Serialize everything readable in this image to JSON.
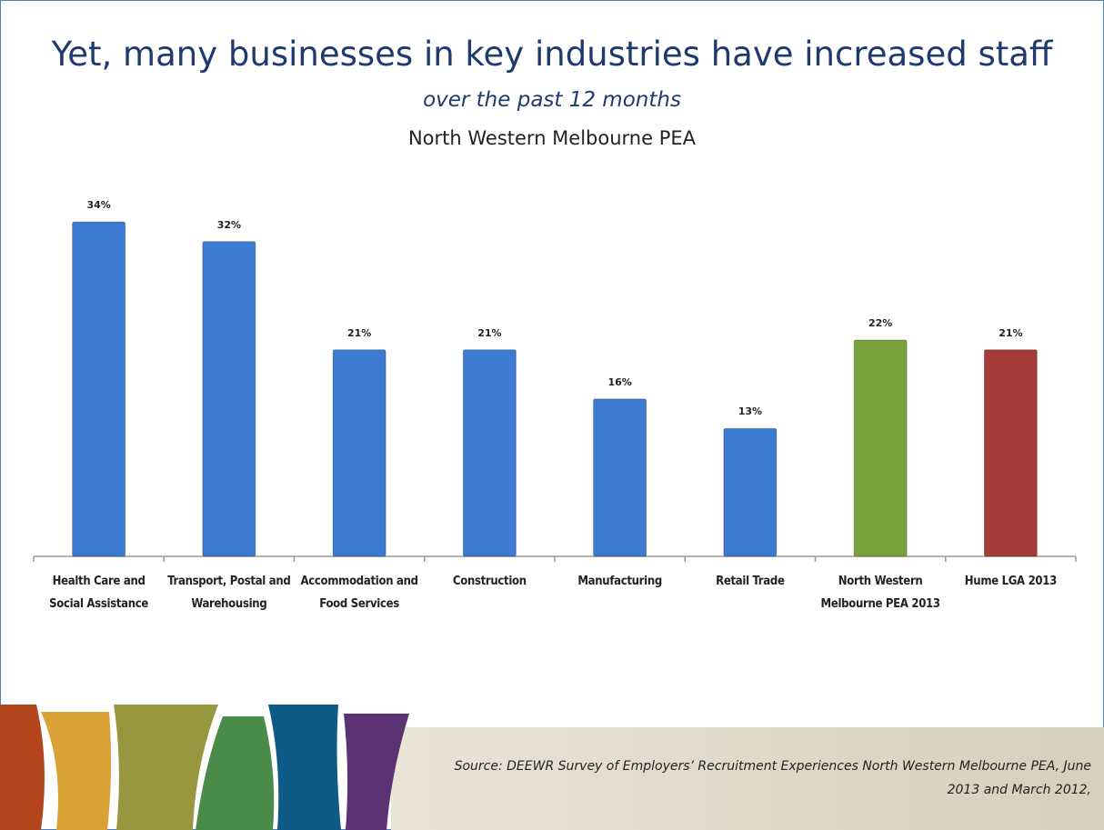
{
  "chart_data": {
    "type": "bar",
    "title": "Yet, many businesses in key industries have increased staff",
    "subtitle": "over the past 12 months",
    "subtitle2": "North Western Melbourne PEA",
    "categories": [
      "Health Care and Social Assistance",
      "Transport, Postal and Warehousing",
      "Accommodation and Food Services",
      "Construction",
      "Manufacturing",
      "Retail Trade",
      "North Western Melbourne PEA 2013",
      "Hume LGA 2013"
    ],
    "values": [
      34,
      32,
      21,
      21,
      16,
      13,
      22,
      21
    ],
    "value_labels": [
      "34%",
      "32%",
      "21%",
      "21%",
      "16%",
      "13%",
      "22%",
      "21%"
    ],
    "colors": [
      "#3d7bd2",
      "#3d7bd2",
      "#3d7bd2",
      "#3d7bd2",
      "#3d7bd2",
      "#3d7bd2",
      "#79a13c",
      "#a63b37"
    ],
    "source": "Source: DEEWR Survey of Employers’ Recruitment Experiences North Western Melbourne PEA, June 2013 and March 2012,"
  }
}
